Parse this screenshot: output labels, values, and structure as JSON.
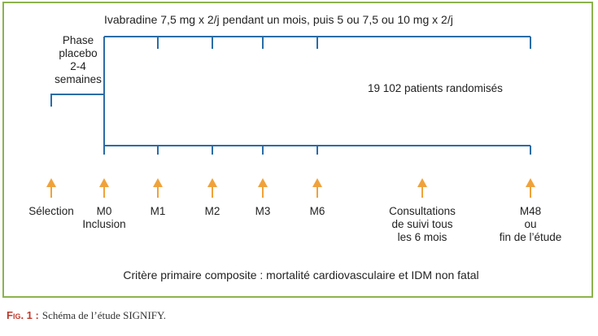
{
  "treatment_label": "Ivabradine 7,5 mg x 2/j pendant un mois, puis 5 ou 7,5 ou 10 mg x 2/j",
  "placebo_phase": [
    "Phase",
    "placebo",
    "2-4",
    "semaines"
  ],
  "patients_label": "19 102 patients randomisés",
  "timepoints": [
    {
      "lines": [
        "Sélection"
      ]
    },
    {
      "lines": [
        "M0",
        "Inclusion"
      ]
    },
    {
      "lines": [
        "M1"
      ]
    },
    {
      "lines": [
        "M2"
      ]
    },
    {
      "lines": [
        "M3"
      ]
    },
    {
      "lines": [
        "M6"
      ]
    },
    {
      "lines": [
        "Consultations",
        "de suivi tous",
        "les 6 mois"
      ]
    },
    {
      "lines": [
        "M48",
        "ou",
        "fin de l’étude"
      ]
    }
  ],
  "primary_endpoint": "Critère primaire composite : mortalité cardiovasculaire et IDM non fatal",
  "caption": {
    "label": "Fig. 1 :",
    "text": "Schéma de l’étude SIGNIFY."
  },
  "colors": {
    "frame": "#8db24e",
    "timeline": "#2a6ca6",
    "arrow": "#f0a23a"
  }
}
